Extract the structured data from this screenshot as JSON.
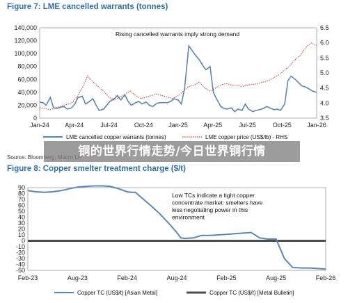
{
  "banner": {
    "text": "铜的世界行情走势/今日世界铜行情"
  },
  "figure7": {
    "title": "Figure 7: LME cancelled warrants (tonnes)",
    "source": "Source: Bloomberg, Macro LP"
  },
  "figure8": {
    "title": "Figure 8: Copper smelter treatment charge ($/t)"
  },
  "chart_data": [
    {
      "type": "line",
      "title": "Figure 7: LME cancelled warrants (tonnes)",
      "annotation": "Rising cancelled warrants imply strong demand",
      "x_tick_labels": [
        "Jan-24",
        "Apr-24",
        "Jul-24",
        "Oct-24",
        "Jan-25",
        "Apr-25",
        "Jul-25",
        "Oct-25",
        "Jan-26"
      ],
      "x_range": [
        0,
        26
      ],
      "y_left": {
        "range": [
          0,
          140000
        ],
        "ticks": [
          0,
          20000,
          40000,
          60000,
          80000,
          100000,
          120000,
          140000
        ],
        "tick_labels": [
          "0",
          "20,000",
          "40,000",
          "60,000",
          "80,000",
          "100,000",
          "120,000",
          "140,000"
        ]
      },
      "y_right": {
        "range": [
          3.5,
          6.5
        ],
        "ticks": [
          3.5,
          4.0,
          4.5,
          5.0,
          5.5,
          6.0,
          6.5
        ],
        "tick_labels": [
          "3.5",
          "4.0",
          "4.5",
          "5.0",
          "5.5",
          "6.0",
          "6.5"
        ]
      },
      "series": [
        {
          "name": "LME cancelled copper warrants (tonnes)",
          "axis": "left",
          "color": "#5a86b4",
          "style": "solid",
          "x": [
            0,
            0.3,
            0.6,
            1,
            1.3,
            1.6,
            2,
            2.3,
            2.6,
            3,
            3.3,
            3.6,
            4,
            4.3,
            4.6,
            5,
            5.3,
            5.6,
            6,
            6.3,
            6.6,
            7,
            7.3,
            7.6,
            8,
            8.3,
            8.6,
            9,
            9.3,
            9.6,
            10,
            10.3,
            10.6,
            11,
            11.3,
            11.6,
            12,
            12.3,
            12.6,
            13,
            13.3,
            13.6,
            14,
            14.3,
            14.6,
            15,
            15.3,
            15.6,
            16,
            16.3,
            16.6,
            17,
            17.3,
            17.6,
            18,
            18.3,
            18.6,
            19,
            19.3,
            19.6,
            20,
            20.3,
            20.6,
            21,
            21.3,
            21.6,
            22,
            22.3,
            22.6,
            23,
            23.3,
            23.6,
            24,
            24.3,
            24.6,
            25,
            25.3,
            25.6,
            26
          ],
          "values": [
            25000,
            24000,
            20000,
            32000,
            16000,
            15000,
            17000,
            18000,
            14000,
            16000,
            22000,
            32000,
            34000,
            22000,
            25000,
            30000,
            20000,
            12000,
            14000,
            20000,
            26000,
            30000,
            35000,
            28000,
            36000,
            26000,
            20000,
            24000,
            26000,
            22000,
            25000,
            20000,
            18000,
            23000,
            24000,
            24000,
            24000,
            26000,
            30000,
            28000,
            22000,
            46000,
            112000,
            105000,
            98000,
            90000,
            82000,
            75000,
            80000,
            40000,
            30000,
            18000,
            15000,
            14000,
            16000,
            10000,
            14000,
            12000,
            22000,
            14000,
            10000,
            12000,
            13000,
            15000,
            18000,
            16000,
            13000,
            14000,
            12000,
            22000,
            58000,
            65000,
            60000,
            55000,
            50000,
            48000,
            45000,
            42000,
            40000
          ]
        },
        {
          "name": "LME copper price (US$/lb) - RHS",
          "axis": "right",
          "color": "#c0392b",
          "style": "dotted",
          "x": [
            0,
            0.5,
            1,
            1.5,
            2,
            2.5,
            3,
            3.5,
            4,
            4.5,
            5,
            5.5,
            6,
            6.5,
            7,
            7.5,
            8,
            8.5,
            9,
            9.5,
            10,
            10.5,
            11,
            11.5,
            12,
            12.5,
            13,
            13.5,
            14,
            14.5,
            15,
            15.5,
            16,
            16.5,
            17,
            17.5,
            18,
            18.5,
            19,
            19.5,
            20,
            20.5,
            21,
            21.5,
            22,
            22.5,
            23,
            23.5,
            24,
            24.5,
            25,
            25.5,
            26
          ],
          "values": [
            3.85,
            3.82,
            3.78,
            3.85,
            3.9,
            3.95,
            4.0,
            4.2,
            4.5,
            4.9,
            4.7,
            4.55,
            4.4,
            4.2,
            4.1,
            4.2,
            4.3,
            4.4,
            4.25,
            4.15,
            4.2,
            4.25,
            4.3,
            4.25,
            4.2,
            4.15,
            4.25,
            4.4,
            4.55,
            4.6,
            4.7,
            4.5,
            4.4,
            4.5,
            4.6,
            4.65,
            4.6,
            4.58,
            4.55,
            4.6,
            4.62,
            4.65,
            4.7,
            4.75,
            4.85,
            4.95,
            5.1,
            5.25,
            5.45,
            5.6,
            5.85,
            6.0,
            5.9
          ]
        }
      ]
    },
    {
      "type": "line",
      "title": "Figure 8: Copper smelter treatment charge ($/t)",
      "annotation": "Low TCs indicate a tight copper concentrate market: smelters have less negotiating power in this environment",
      "x_tick_labels": [
        "Feb-23",
        "Aug-23",
        "Feb-24",
        "Aug-24",
        "Feb-25",
        "Aug-25",
        "Feb-26"
      ],
      "x_range": [
        0,
        36
      ],
      "y_range": [
        -50,
        90
      ],
      "y_ticks": [
        -50,
        -40,
        -30,
        -20,
        -10,
        0,
        10,
        20,
        30,
        40,
        50,
        60,
        70,
        80,
        90
      ],
      "series": [
        {
          "name": "Copper TC (US$/t) [Asian Metal]",
          "color": "#5a86b4",
          "style": "solid",
          "x": [
            0,
            0.5,
            1,
            2,
            3,
            4,
            5,
            6,
            7,
            8,
            9,
            10,
            11,
            12,
            12.5,
            13,
            14,
            15,
            16,
            17,
            18,
            18.5,
            19,
            20,
            21,
            22,
            23,
            24,
            25,
            26,
            27,
            28,
            29,
            30,
            31,
            32,
            33,
            34,
            35,
            36
          ],
          "values": [
            85,
            84,
            83,
            82,
            83,
            85,
            88,
            91,
            92,
            93,
            93,
            92,
            88,
            83,
            82,
            82,
            70,
            58,
            45,
            30,
            14,
            5,
            4,
            5,
            9,
            9,
            10,
            11,
            12,
            13,
            14,
            5,
            3,
            3,
            -30,
            -45,
            -46,
            -46,
            -47,
            -48
          ]
        },
        {
          "name": "Copper TC (US$/t) [Metal Bulletin]",
          "color": "#4d4d4d",
          "style": "solid",
          "x": [
            0,
            36
          ],
          "values": [
            0,
            0
          ]
        }
      ]
    }
  ]
}
